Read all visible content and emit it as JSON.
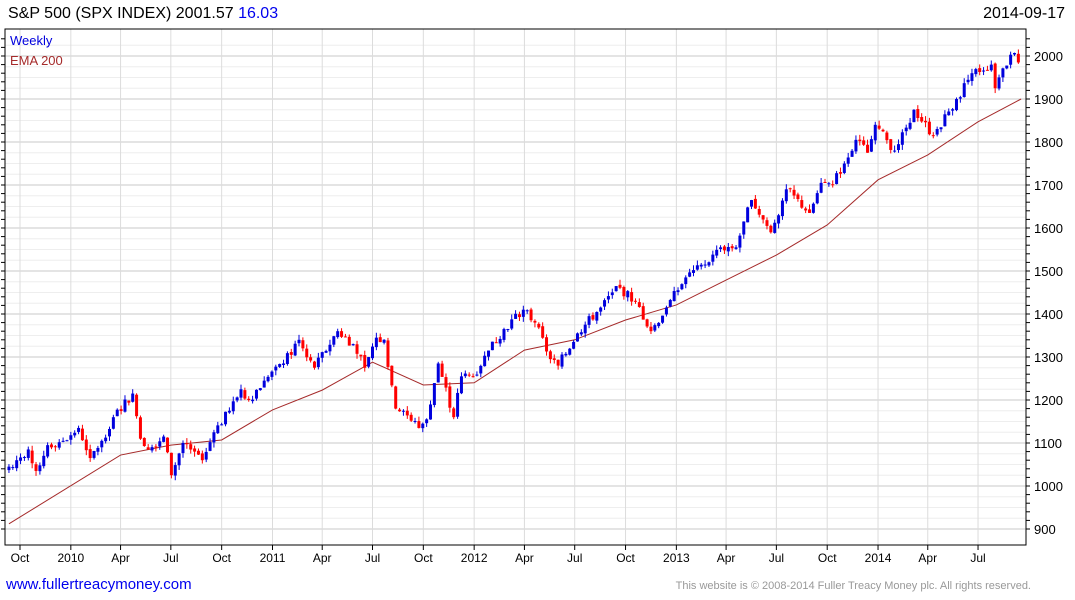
{
  "header": {
    "title": "S&P 500 (SPX INDEX) 2001.57",
    "change": "16.03",
    "date": "2014-09-17"
  },
  "footer": {
    "link": "www.fullertreacymoney.com",
    "copyright": "This website is © 2008-2014 Fuller Treacy Money plc. All rights reserved."
  },
  "chart_data": {
    "type": "candlestick",
    "legend": [
      "Weekly",
      "EMA 200"
    ],
    "legend_placement": "top-left",
    "colors": {
      "up": "#0000dd",
      "down": "#ff0000",
      "ema": "#a52a2a"
    },
    "ylim": [
      880,
      2040
    ],
    "yticks": [
      900,
      1000,
      1100,
      1200,
      1300,
      1400,
      1500,
      1600,
      1700,
      1800,
      1900,
      2000
    ],
    "xticks": [
      [
        "2009-10-01",
        "Oct"
      ],
      [
        "2010-01-01",
        "2010"
      ],
      [
        "2010-04-01",
        "Apr"
      ],
      [
        "2010-07-01",
        "Jul"
      ],
      [
        "2010-10-01",
        "Oct"
      ],
      [
        "2011-01-01",
        "2011"
      ],
      [
        "2011-04-01",
        "Apr"
      ],
      [
        "2011-07-01",
        "Jul"
      ],
      [
        "2011-10-01",
        "Oct"
      ],
      [
        "2012-01-01",
        "2012"
      ],
      [
        "2012-04-01",
        "Apr"
      ],
      [
        "2012-07-01",
        "Jul"
      ],
      [
        "2012-10-01",
        "Oct"
      ],
      [
        "2013-01-01",
        "2013"
      ],
      [
        "2013-04-01",
        "Apr"
      ],
      [
        "2013-07-01",
        "Jul"
      ],
      [
        "2013-10-01",
        "Oct"
      ],
      [
        "2014-01-01",
        "2014"
      ],
      [
        "2014-04-01",
        "Apr"
      ],
      [
        "2014-07-01",
        "Jul"
      ]
    ],
    "weekly_close": [
      [
        "2009-09-11",
        1045
      ],
      [
        "2009-09-25",
        1060
      ],
      [
        "2009-10-16",
        1085
      ],
      [
        "2009-10-30",
        1035
      ],
      [
        "2009-11-20",
        1095
      ],
      [
        "2009-12-18",
        1105
      ],
      [
        "2010-01-15",
        1135
      ],
      [
        "2010-02-05",
        1065
      ],
      [
        "2010-02-26",
        1105
      ],
      [
        "2010-03-19",
        1160
      ],
      [
        "2010-04-23",
        1215
      ],
      [
        "2010-05-07",
        1110
      ],
      [
        "2010-05-21",
        1085
      ],
      [
        "2010-06-18",
        1115
      ],
      [
        "2010-07-02",
        1025
      ],
      [
        "2010-07-23",
        1100
      ],
      [
        "2010-08-13",
        1080
      ],
      [
        "2010-08-27",
        1060
      ],
      [
        "2010-09-17",
        1125
      ],
      [
        "2010-10-15",
        1175
      ],
      [
        "2010-11-05",
        1225
      ],
      [
        "2010-11-19",
        1200
      ],
      [
        "2010-12-17",
        1245
      ],
      [
        "2011-01-21",
        1285
      ],
      [
        "2011-02-18",
        1340
      ],
      [
        "2011-03-18",
        1275
      ],
      [
        "2011-04-29",
        1360
      ],
      [
        "2011-05-27",
        1330
      ],
      [
        "2011-06-17",
        1275
      ],
      [
        "2011-07-08",
        1345
      ],
      [
        "2011-07-22",
        1340
      ],
      [
        "2011-08-12",
        1180
      ],
      [
        "2011-08-26",
        1175
      ],
      [
        "2011-09-23",
        1135
      ],
      [
        "2011-10-07",
        1155
      ],
      [
        "2011-10-28",
        1285
      ],
      [
        "2011-11-25",
        1160
      ],
      [
        "2011-12-09",
        1255
      ],
      [
        "2011-12-30",
        1255
      ],
      [
        "2012-01-27",
        1315
      ],
      [
        "2012-02-24",
        1365
      ],
      [
        "2012-03-30",
        1410
      ],
      [
        "2012-04-20",
        1380
      ],
      [
        "2012-05-18",
        1295
      ],
      [
        "2012-06-01",
        1280
      ],
      [
        "2012-07-06",
        1355
      ],
      [
        "2012-08-17",
        1415
      ],
      [
        "2012-09-14",
        1465
      ],
      [
        "2012-10-19",
        1430
      ],
      [
        "2012-11-16",
        1360
      ],
      [
        "2012-12-14",
        1415
      ],
      [
        "2013-01-18",
        1485
      ],
      [
        "2013-02-22",
        1515
      ],
      [
        "2013-03-22",
        1555
      ],
      [
        "2013-04-19",
        1555
      ],
      [
        "2013-05-17",
        1665
      ],
      [
        "2013-06-21",
        1590
      ],
      [
        "2013-07-19",
        1690
      ],
      [
        "2013-08-30",
        1635
      ],
      [
        "2013-09-20",
        1705
      ],
      [
        "2013-10-11",
        1700
      ],
      [
        "2013-11-22",
        1805
      ],
      [
        "2013-12-13",
        1775
      ],
      [
        "2013-12-27",
        1840
      ],
      [
        "2014-01-31",
        1780
      ],
      [
        "2014-02-07",
        1795
      ],
      [
        "2014-03-07",
        1875
      ],
      [
        "2014-04-11",
        1815
      ],
      [
        "2014-05-23",
        1900
      ],
      [
        "2014-06-20",
        1960
      ],
      [
        "2014-07-25",
        1980
      ],
      [
        "2014-08-01",
        1925
      ],
      [
        "2014-08-29",
        2003
      ],
      [
        "2014-09-05",
        2007
      ],
      [
        "2014-09-12",
        1985
      ],
      [
        "2014-09-17",
        2001.57
      ]
    ],
    "ema200": [
      [
        "2009-09-11",
        912
      ],
      [
        "2010-04-01",
        1072
      ],
      [
        "2010-07-01",
        1095
      ],
      [
        "2010-10-01",
        1107
      ],
      [
        "2011-01-01",
        1177
      ],
      [
        "2011-04-01",
        1223
      ],
      [
        "2011-07-01",
        1288
      ],
      [
        "2011-10-01",
        1235
      ],
      [
        "2012-01-01",
        1240
      ],
      [
        "2012-04-01",
        1316
      ],
      [
        "2012-07-01",
        1340
      ],
      [
        "2012-10-01",
        1386
      ],
      [
        "2013-01-01",
        1421
      ],
      [
        "2013-04-01",
        1479
      ],
      [
        "2013-07-01",
        1537
      ],
      [
        "2013-10-01",
        1607
      ],
      [
        "2014-01-01",
        1712
      ],
      [
        "2014-04-01",
        1770
      ],
      [
        "2014-07-01",
        1847
      ],
      [
        "2014-09-17",
        1900
      ]
    ]
  }
}
